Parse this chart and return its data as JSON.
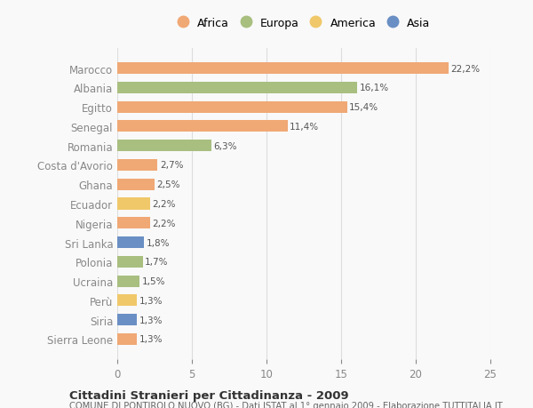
{
  "categories": [
    "Sierra Leone",
    "Siria",
    "Perù",
    "Ucraina",
    "Polonia",
    "Sri Lanka",
    "Nigeria",
    "Ecuador",
    "Ghana",
    "Costa d'Avorio",
    "Romania",
    "Senegal",
    "Egitto",
    "Albania",
    "Marocco"
  ],
  "values": [
    1.3,
    1.3,
    1.3,
    1.5,
    1.7,
    1.8,
    2.2,
    2.2,
    2.5,
    2.7,
    6.3,
    11.4,
    15.4,
    16.1,
    22.2
  ],
  "labels": [
    "1,3%",
    "1,3%",
    "1,3%",
    "1,5%",
    "1,7%",
    "1,8%",
    "2,2%",
    "2,2%",
    "2,5%",
    "2,7%",
    "6,3%",
    "11,4%",
    "15,4%",
    "16,1%",
    "22,2%"
  ],
  "colors": [
    "#f0a875",
    "#6a8fc4",
    "#f0c86a",
    "#a8bf80",
    "#a8bf80",
    "#6a8fc4",
    "#f0a875",
    "#f0c86a",
    "#f0a875",
    "#f0a875",
    "#a8bf80",
    "#f0a875",
    "#f0a875",
    "#a8bf80",
    "#f0a875"
  ],
  "legend_labels": [
    "Africa",
    "Europa",
    "America",
    "Asia"
  ],
  "legend_colors": [
    "#f0a875",
    "#a8bf80",
    "#f0c86a",
    "#6a8fc4"
  ],
  "xlim": [
    0,
    25
  ],
  "xticks": [
    0,
    5,
    10,
    15,
    20,
    25
  ],
  "title1": "Cittadini Stranieri per Cittadinanza - 2009",
  "title2": "COMUNE DI PONTIROLO NUOVO (BG) - Dati ISTAT al 1° gennaio 2009 - Elaborazione TUTTITALIA.IT",
  "bar_height": 0.6,
  "bg_color": "#f9f9f9",
  "grid_color": "#dddddd"
}
